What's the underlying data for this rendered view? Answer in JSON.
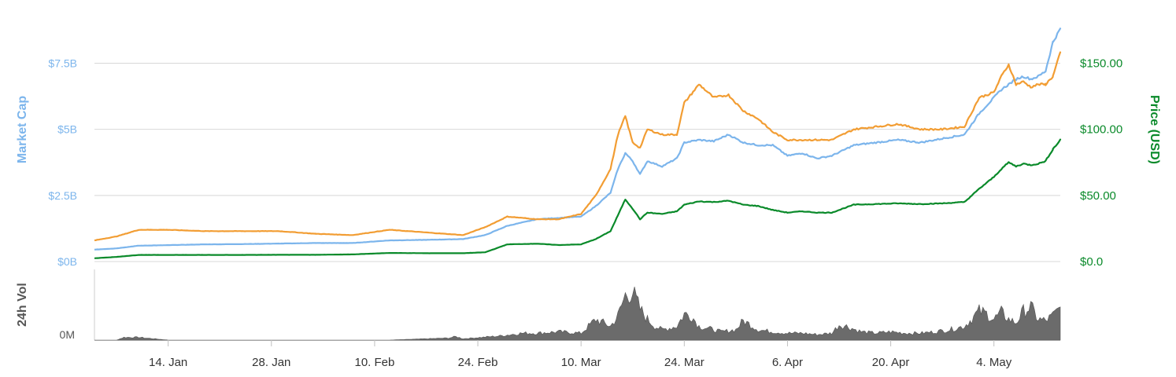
{
  "chart_data": {
    "type": "line",
    "x_labels": [
      "14. Jan",
      "28. Jan",
      "10. Feb",
      "24. Feb",
      "10. Mar",
      "24. Mar",
      "6. Apr",
      "20. Apr",
      "4. May"
    ],
    "x_range": [
      "4. Jan",
      "5. May"
    ],
    "left_axis": {
      "title": "Market Cap",
      "tick_labels": [
        "$0B",
        "$2.5B",
        "$5B",
        "$7.5B"
      ],
      "tick_values": [
        0,
        2.5,
        5,
        7.5
      ],
      "ylim": [
        0,
        9
      ],
      "unit": "B"
    },
    "right_axis": {
      "title": "Price (USD)",
      "tick_labels": [
        "$0.0",
        "$50.00",
        "$100.00",
        "$150.00"
      ],
      "tick_values": [
        0,
        50,
        100,
        150
      ],
      "ylim": [
        0,
        180
      ]
    },
    "volume_axis": {
      "title": "24h Vol",
      "tick_labels": [
        "0M"
      ]
    },
    "series": [
      {
        "color": "#7cb5ec",
        "axis": "left",
        "days": [
          0,
          3,
          6,
          10,
          15,
          20,
          25,
          30,
          35,
          40,
          45,
          50,
          53,
          56,
          60,
          63,
          66,
          68,
          70,
          71,
          72,
          73,
          74,
          75,
          77,
          79,
          80,
          82,
          84,
          86,
          88,
          90,
          92,
          94,
          96,
          98,
          100,
          103,
          106,
          109,
          112,
          115,
          118,
          120,
          122,
          123,
          124,
          125,
          126,
          127,
          128,
          129,
          130,
          131
        ],
        "values": [
          0.45,
          0.5,
          0.6,
          0.62,
          0.65,
          0.66,
          0.68,
          0.7,
          0.7,
          0.8,
          0.82,
          0.85,
          1.0,
          1.35,
          1.6,
          1.65,
          1.7,
          2.1,
          2.6,
          3.5,
          4.1,
          3.8,
          3.3,
          3.8,
          3.6,
          3.9,
          4.5,
          4.6,
          4.55,
          4.8,
          4.5,
          4.4,
          4.4,
          4.0,
          4.1,
          3.9,
          4.0,
          4.4,
          4.5,
          4.6,
          4.5,
          4.65,
          4.8,
          5.6,
          6.2,
          6.5,
          6.7,
          6.9,
          7.0,
          6.9,
          7.0,
          7.2,
          8.3,
          8.8
        ]
      },
      {
        "color": "#f29d33",
        "axis": "left",
        "days": [
          0,
          3,
          6,
          10,
          15,
          20,
          25,
          30,
          35,
          40,
          45,
          50,
          53,
          56,
          60,
          63,
          66,
          68,
          70,
          71,
          72,
          73,
          74,
          75,
          77,
          79,
          80,
          82,
          84,
          86,
          88,
          90,
          92,
          94,
          96,
          98,
          100,
          103,
          106,
          109,
          112,
          115,
          118,
          120,
          122,
          123,
          124,
          125,
          126,
          127,
          128,
          129,
          130,
          131
        ],
        "values": [
          0.8,
          0.95,
          1.2,
          1.2,
          1.15,
          1.15,
          1.15,
          1.05,
          1.0,
          1.2,
          1.1,
          1.0,
          1.3,
          1.7,
          1.6,
          1.6,
          1.8,
          2.5,
          3.5,
          4.8,
          5.5,
          4.5,
          4.3,
          5.0,
          4.8,
          4.8,
          6.0,
          6.7,
          6.2,
          6.3,
          5.7,
          5.4,
          4.9,
          4.6,
          4.6,
          4.6,
          4.6,
          5.0,
          5.1,
          5.2,
          5.0,
          5.0,
          5.1,
          6.2,
          6.4,
          7.0,
          7.45,
          6.7,
          6.8,
          6.6,
          6.7,
          6.7,
          7.0,
          7.9
        ]
      },
      {
        "color": "#0a8a2a",
        "axis": "right",
        "days": [
          0,
          3,
          6,
          10,
          15,
          20,
          25,
          30,
          35,
          40,
          45,
          50,
          53,
          56,
          60,
          63,
          66,
          68,
          70,
          71,
          72,
          73,
          74,
          75,
          77,
          79,
          80,
          82,
          84,
          86,
          88,
          90,
          92,
          94,
          96,
          98,
          100,
          103,
          106,
          109,
          112,
          115,
          118,
          120,
          122,
          123,
          124,
          125,
          126,
          127,
          128,
          129,
          130,
          131
        ],
        "values": [
          2.5,
          3.5,
          5.0,
          5.0,
          5.0,
          5.0,
          5.1,
          5.1,
          5.4,
          6.5,
          6.3,
          6.3,
          7.0,
          13.0,
          13.5,
          12.5,
          13.0,
          17.0,
          23.0,
          35.0,
          47.0,
          40.0,
          32.0,
          37.0,
          36.0,
          38.0,
          43.0,
          45.5,
          45.0,
          46.0,
          43.0,
          42.0,
          39.0,
          37.0,
          38.0,
          37.0,
          37.0,
          43.0,
          43.5,
          44.0,
          43.5,
          44.0,
          45.0,
          55.0,
          64.0,
          70.0,
          75.0,
          72.0,
          74.0,
          73.0,
          74.0,
          76.0,
          85.0,
          92.0
        ]
      }
    ],
    "volume": {
      "color": "#6b6b6b",
      "days": [
        0,
        3,
        4,
        6,
        8,
        10,
        20,
        30,
        40,
        48,
        49,
        50,
        55,
        58,
        60,
        63,
        66,
        68,
        70,
        71,
        72,
        73,
        74,
        75,
        76,
        77,
        79,
        80,
        81,
        82,
        84,
        85,
        87,
        88,
        89,
        90,
        92,
        94,
        96,
        98,
        100,
        101,
        102,
        104,
        106,
        108,
        110,
        112,
        114,
        116,
        118,
        120,
        121,
        122,
        123,
        124,
        125,
        126,
        127,
        128,
        129,
        130,
        131
      ],
      "values": [
        0,
        0,
        0.04,
        0.04,
        0.02,
        0,
        0,
        0,
        0,
        0.03,
        0.05,
        0.02,
        0.06,
        0.1,
        0.1,
        0.12,
        0.1,
        0.3,
        0.2,
        0.35,
        0.65,
        0.7,
        0.45,
        0.3,
        0.2,
        0.15,
        0.2,
        0.38,
        0.35,
        0.2,
        0.15,
        0.12,
        0.15,
        0.28,
        0.22,
        0.15,
        0.12,
        0.1,
        0.1,
        0.08,
        0.1,
        0.22,
        0.2,
        0.12,
        0.1,
        0.12,
        0.1,
        0.1,
        0.12,
        0.15,
        0.2,
        0.42,
        0.38,
        0.3,
        0.4,
        0.3,
        0.25,
        0.42,
        0.48,
        0.3,
        0.28,
        0.35,
        0.48
      ]
    }
  }
}
